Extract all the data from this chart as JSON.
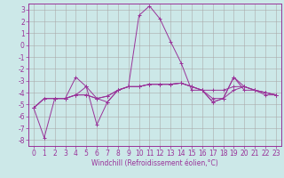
{
  "xlabel": "Windchill (Refroidissement éolien,°C)",
  "ylabel": "",
  "background_color": "#cce8e8",
  "grid_color": "#aaaaaa",
  "line_color": "#993399",
  "xlim": [
    -0.5,
    23.5
  ],
  "ylim": [
    -8.5,
    3.5
  ],
  "xticks": [
    0,
    1,
    2,
    3,
    4,
    5,
    6,
    7,
    8,
    9,
    10,
    11,
    12,
    13,
    14,
    15,
    16,
    17,
    18,
    19,
    20,
    21,
    22,
    23
  ],
  "yticks": [
    -8,
    -7,
    -6,
    -5,
    -4,
    -3,
    -2,
    -1,
    0,
    1,
    2,
    3
  ],
  "series": [
    [
      -5.3,
      -7.8,
      -4.5,
      -4.5,
      -2.7,
      -3.5,
      -6.7,
      -4.8,
      -3.8,
      -3.5,
      2.5,
      3.3,
      2.2,
      0.3,
      -1.5,
      -3.8,
      -3.8,
      -4.8,
      -4.5,
      -2.7,
      -3.8,
      -3.8,
      -4.2,
      -4.2
    ],
    [
      -5.3,
      -4.5,
      -4.5,
      -4.5,
      -4.2,
      -4.2,
      -4.5,
      -4.3,
      -3.8,
      -3.5,
      -3.5,
      -3.3,
      -3.3,
      -3.3,
      -3.2,
      -3.5,
      -3.8,
      -3.8,
      -3.8,
      -3.5,
      -3.5,
      -3.8,
      -4.0,
      -4.2
    ],
    [
      -5.3,
      -4.5,
      -4.5,
      -4.5,
      -4.2,
      -4.2,
      -4.5,
      -4.3,
      -3.8,
      -3.5,
      -3.5,
      -3.3,
      -3.3,
      -3.3,
      -3.2,
      -3.5,
      -3.8,
      -4.8,
      -4.5,
      -3.8,
      -3.5,
      -3.8,
      -4.0,
      -4.2
    ],
    [
      -5.3,
      -4.5,
      -4.5,
      -4.5,
      -4.2,
      -3.5,
      -4.5,
      -4.8,
      -3.8,
      -3.5,
      -3.5,
      -3.3,
      -3.3,
      -3.3,
      -3.2,
      -3.5,
      -3.8,
      -4.5,
      -4.5,
      -2.7,
      -3.5,
      -3.8,
      -4.0,
      -4.2
    ]
  ],
  "tick_fontsize": 5.5,
  "xlabel_fontsize": 5.5
}
